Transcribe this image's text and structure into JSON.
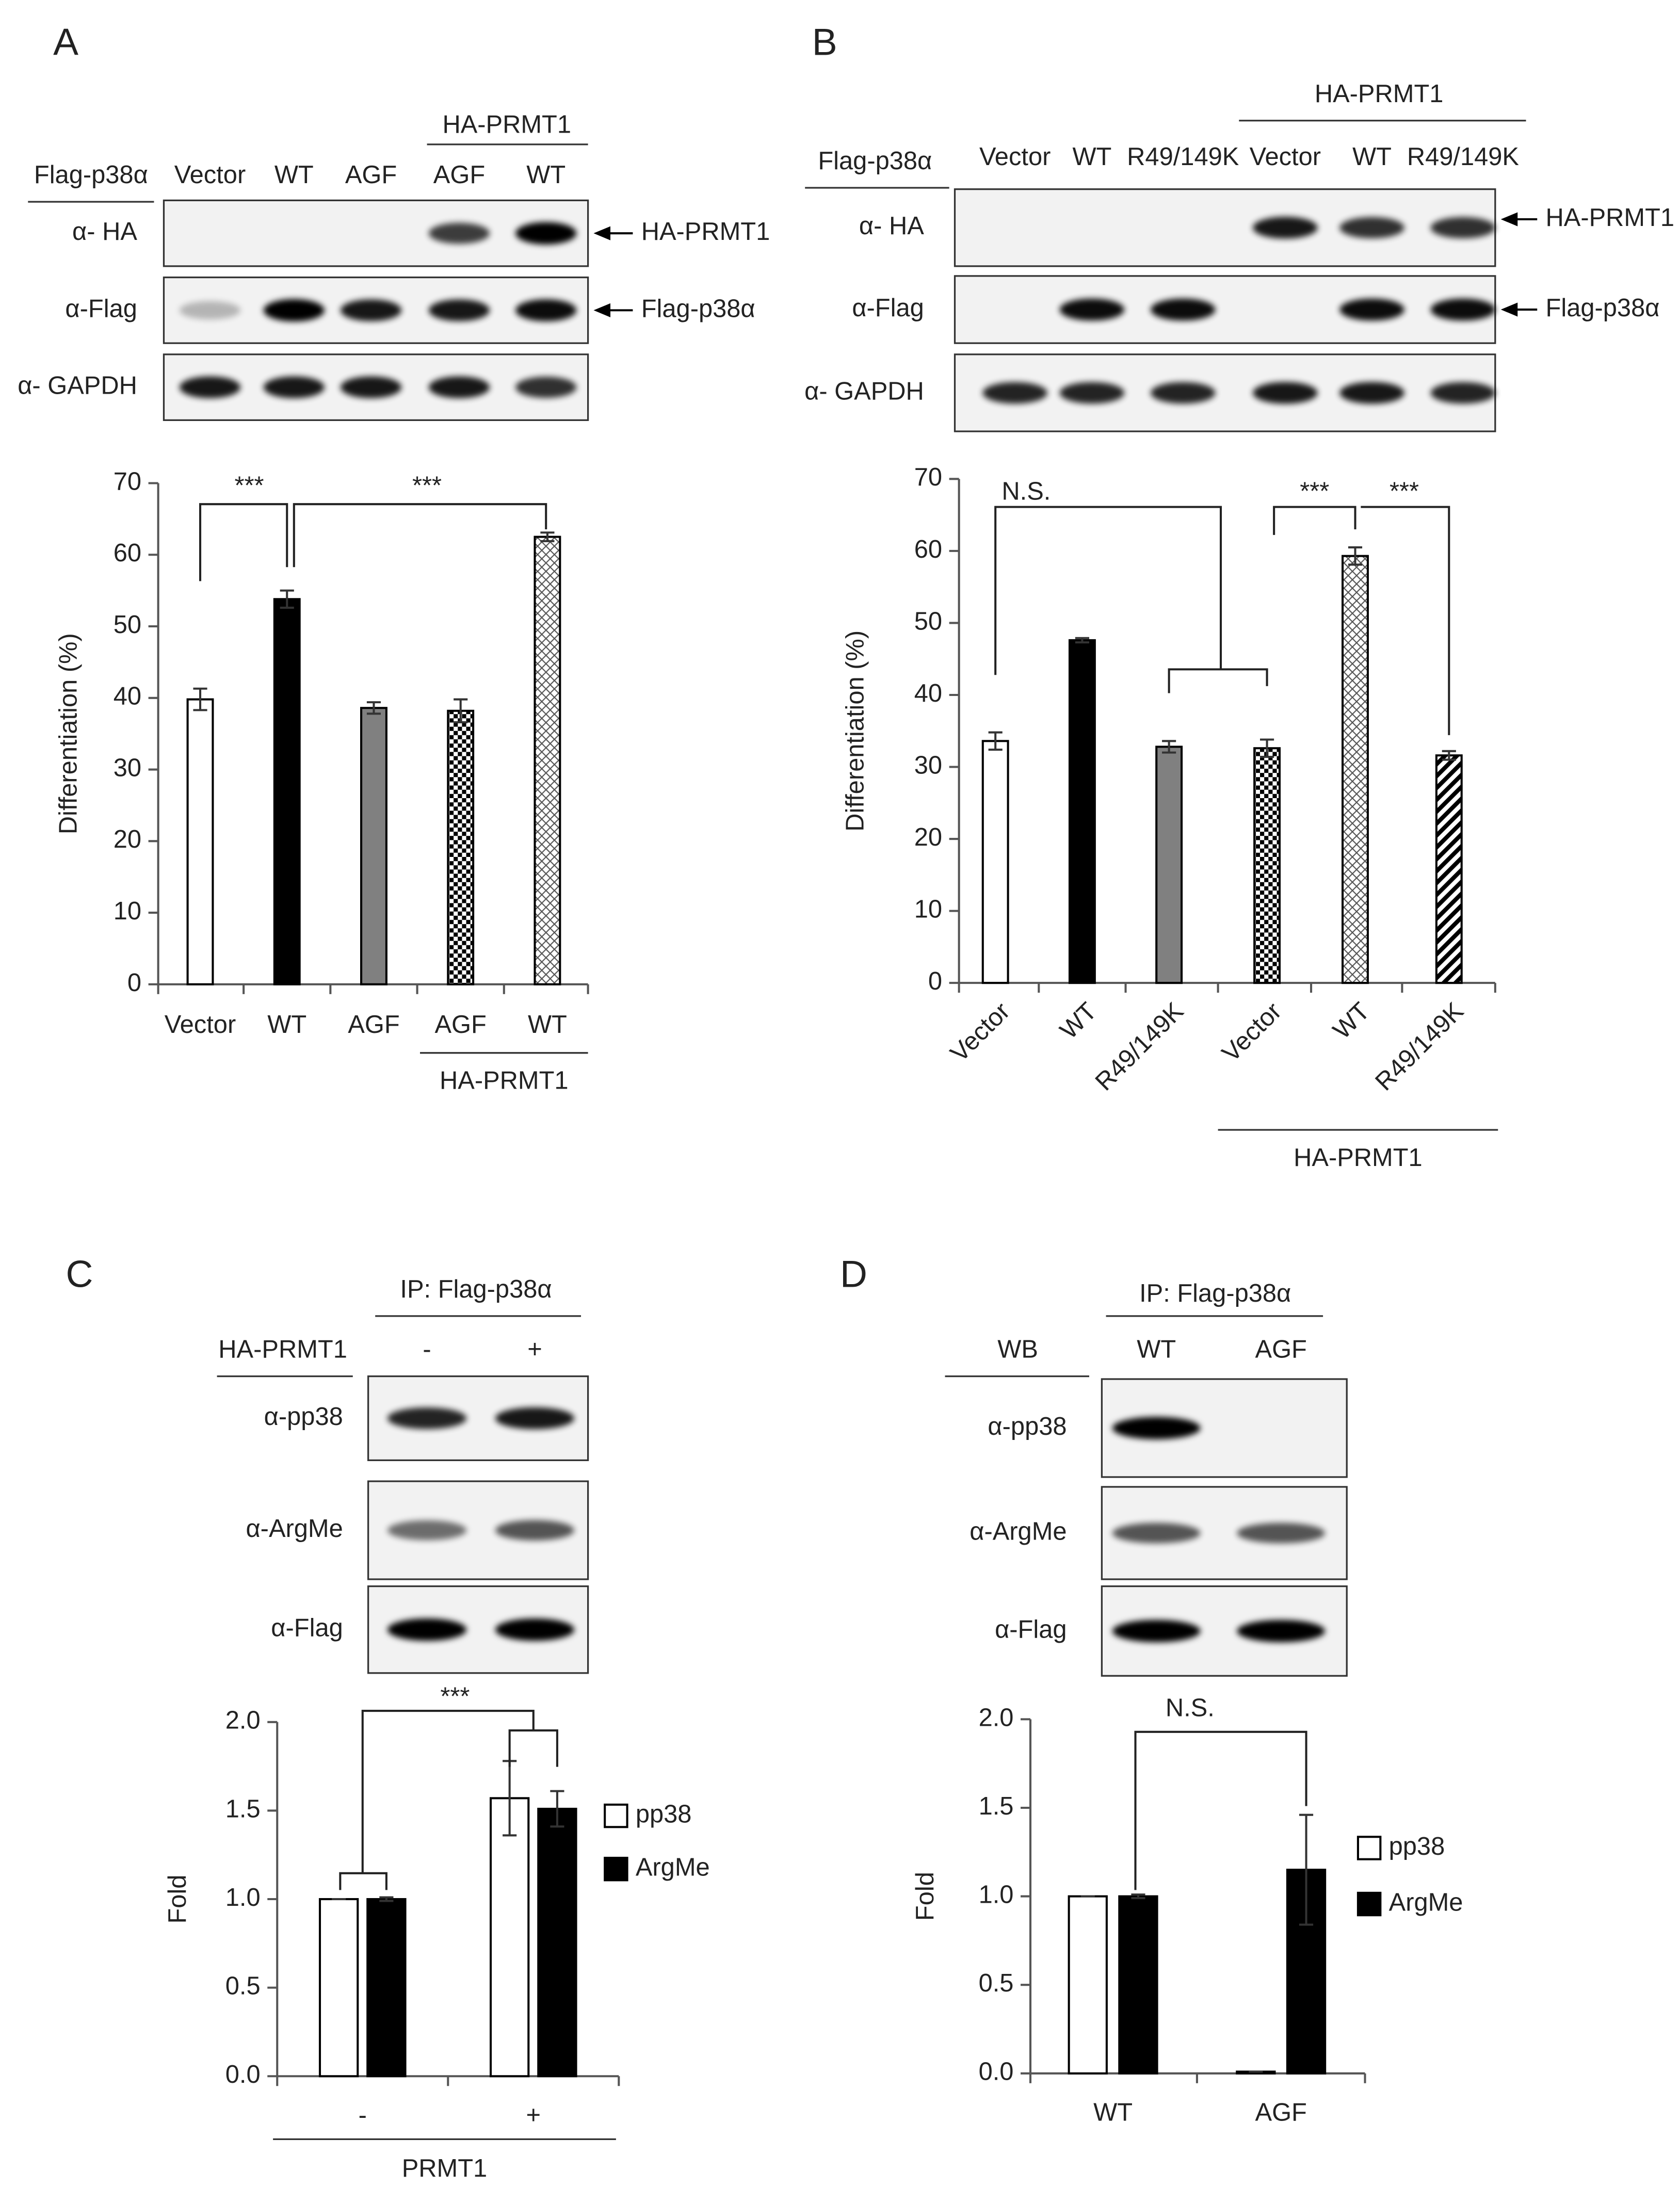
{
  "panels": [
    "A",
    "B",
    "C",
    "D"
  ],
  "blots": [
    {
      "corner_label": "Flag-p38α",
      "lanes": [
        "Vector",
        "WT",
        "AGF",
        "AGF",
        "WT"
      ],
      "group": "HA-PRMT1",
      "rows": [
        "α- HA",
        "α-Flag",
        "α- GAPDH"
      ],
      "arrows": [
        "HA-PRMT1",
        "Flag-p38α"
      ]
    },
    {
      "corner_label": "Flag-p38α",
      "lanes": [
        "Vector",
        "WT",
        "R49/149K",
        "Vector",
        "WT",
        "R49/149K"
      ],
      "group": "HA-PRMT1",
      "rows": [
        "α- HA",
        "α-Flag",
        "α- GAPDH"
      ],
      "arrows": [
        "HA-PRMT1",
        "Flag-p38α"
      ]
    },
    {
      "header": "IP: Flag-p38α",
      "corner_label": "HA-PRMT1",
      "lanes": [
        "-",
        "+"
      ],
      "rows": [
        "α-pp38",
        "α-ArgMe",
        "α-Flag"
      ]
    },
    {
      "header": "IP: Flag-p38α",
      "corner_label": "WB",
      "lanes": [
        "WT",
        "AGF"
      ],
      "rows": [
        "α-pp38",
        "α-ArgMe",
        "α-Flag"
      ]
    }
  ],
  "chart_data": [
    {
      "type": "bar",
      "categories": [
        "Vector",
        "WT",
        "AGF",
        "AGF",
        "WT"
      ],
      "values": [
        39.8,
        53.8,
        38.6,
        38.2,
        62.5
      ],
      "errors": [
        1.5,
        1.2,
        0.8,
        1.6,
        0.6
      ],
      "colors": [
        "#ffffff",
        "#000000",
        "#808080",
        "#ffffff",
        "#ffffff"
      ],
      "hatches": [
        null,
        null,
        null,
        "checker",
        "diamond"
      ],
      "ylabel": "Differentiation (%)",
      "group_label": "HA-PRMT1",
      "ylim": [
        0,
        70
      ],
      "yticks": [
        0,
        10,
        20,
        30,
        40,
        50,
        60,
        70
      ],
      "grid": false,
      "annotations": [
        "***",
        "***"
      ]
    },
    {
      "type": "bar",
      "categories": [
        "Vector",
        "WT",
        "R49/149K",
        "Vector",
        "WT",
        "R49/149K"
      ],
      "values": [
        33.6,
        47.6,
        32.8,
        32.6,
        59.3,
        31.6
      ],
      "errors": [
        1.2,
        0.3,
        0.8,
        1.2,
        1.2,
        0.6
      ],
      "colors": [
        "#ffffff",
        "#000000",
        "#808080",
        "#ffffff",
        "#ffffff",
        "#ffffff"
      ],
      "hatches": [
        null,
        null,
        null,
        "checker",
        "diamond",
        "stripe"
      ],
      "ylabel": "Differentiation (%)",
      "group_label": "HA-PRMT1",
      "ylim": [
        0,
        70
      ],
      "yticks": [
        0,
        10,
        20,
        30,
        40,
        50,
        60,
        70
      ],
      "grid": false,
      "annotations": [
        "N.S.",
        "***",
        "***"
      ]
    },
    {
      "type": "grouped_bar",
      "categories": [
        "-",
        "+"
      ],
      "series": [
        {
          "name": "pp38",
          "color": "#ffffff",
          "values": [
            1.0,
            1.57
          ],
          "errors": [
            0,
            0.21
          ]
        },
        {
          "name": "ArgMe",
          "color": "#000000",
          "values": [
            1.0,
            1.51
          ],
          "errors": [
            0.01,
            0.1
          ]
        }
      ],
      "ylabel": "Fold",
      "xlabel": "PRMT1",
      "ylim": [
        0,
        2
      ],
      "yticks": [
        {
          "value": 0,
          "label": "0.0"
        },
        {
          "value": 0.5,
          "label": "0.5"
        },
        {
          "value": 1,
          "label": "1.0"
        },
        {
          "value": 1.5,
          "label": "1.5"
        },
        {
          "value": 2,
          "label": "2.0"
        }
      ],
      "grid": false,
      "legend": "right",
      "annotations": [
        "***"
      ]
    },
    {
      "type": "grouped_bar",
      "categories": [
        "WT",
        "AGF"
      ],
      "series": [
        {
          "name": "pp38",
          "color": "#ffffff",
          "values": [
            1.0,
            0.01
          ],
          "errors": [
            0,
            0
          ]
        },
        {
          "name": "ArgMe",
          "color": "#000000",
          "values": [
            1.0,
            1.15
          ],
          "errors": [
            0.01,
            0.31
          ]
        }
      ],
      "ylabel": "Fold",
      "ylim": [
        0,
        2
      ],
      "yticks": [
        {
          "value": 0,
          "label": "0.0"
        },
        {
          "value": 0.5,
          "label": "0.5"
        },
        {
          "value": 1,
          "label": "1.0"
        },
        {
          "value": 1.5,
          "label": "1.5"
        },
        {
          "value": 2,
          "label": "2.0"
        }
      ],
      "grid": false,
      "legend": "right",
      "annotations": [
        "N.S."
      ]
    }
  ]
}
